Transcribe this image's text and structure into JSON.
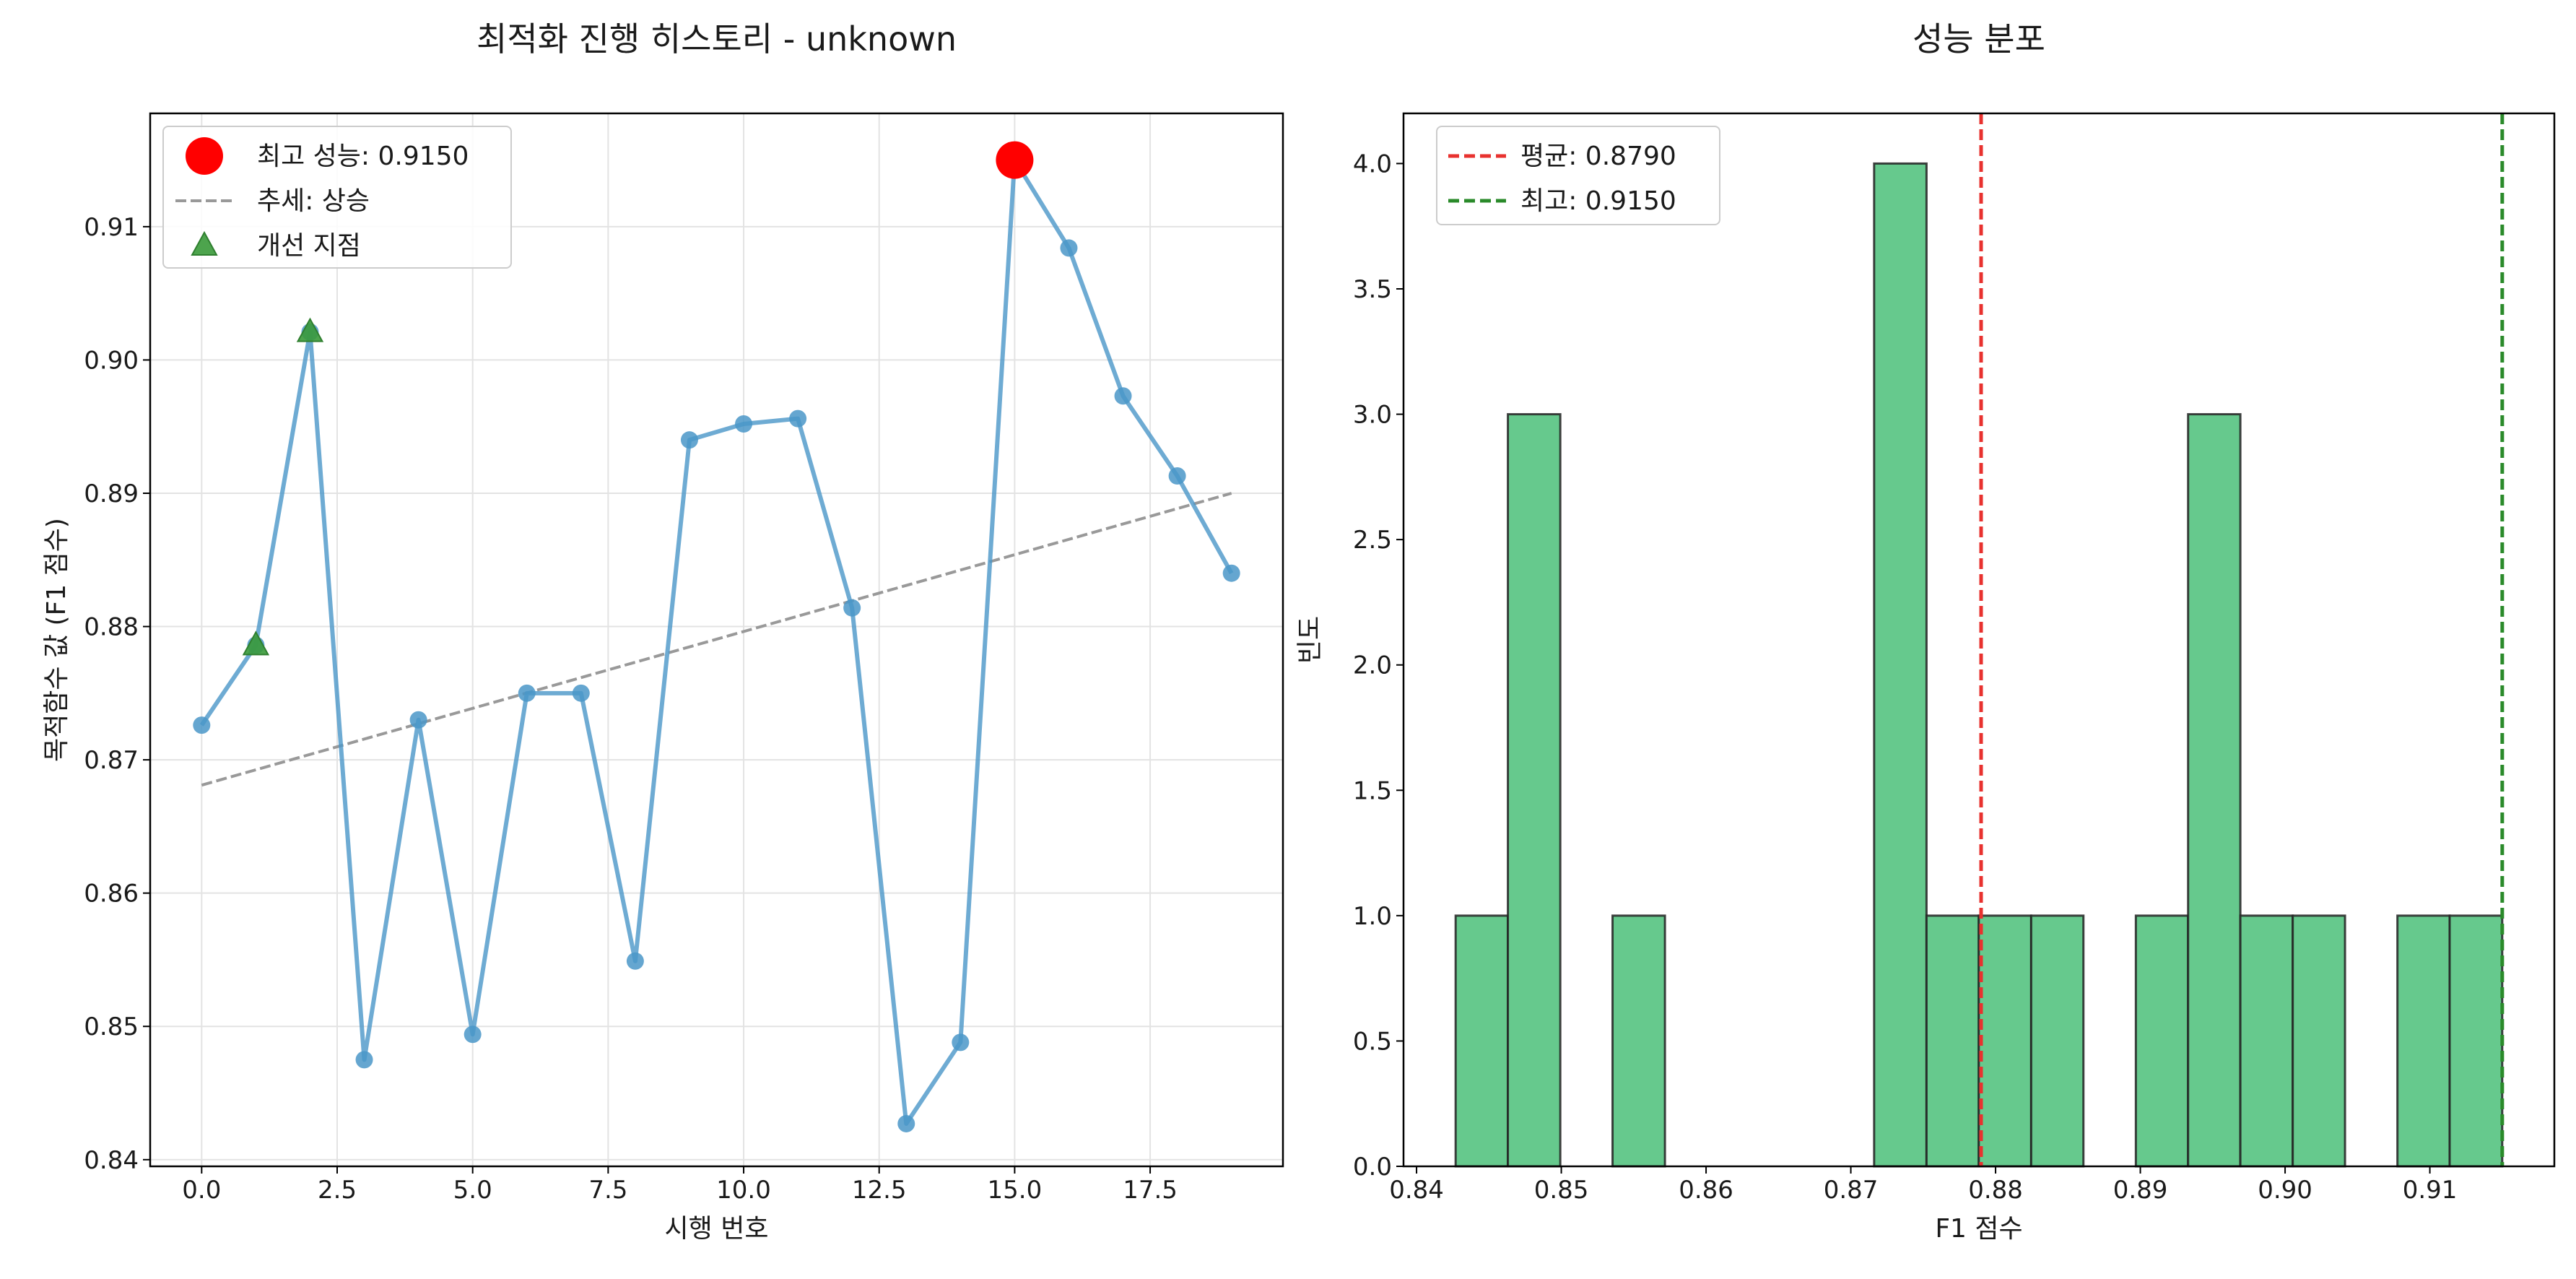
{
  "chart_data": [
    {
      "type": "line",
      "title": "최적화 진행 히스토리 - unknown",
      "xlabel": "시행 번호",
      "ylabel": "목적함수 값 (F1 점수)",
      "xlim": [
        -0.95,
        19.95
      ],
      "ylim": [
        0.8395,
        0.9185
      ],
      "xticks": [
        0.0,
        2.5,
        5.0,
        7.5,
        10.0,
        12.5,
        15.0,
        17.5
      ],
      "xtick_labels": [
        "0.0",
        "2.5",
        "5.0",
        "7.5",
        "10.0",
        "12.5",
        "15.0",
        "17.5"
      ],
      "yticks": [
        0.84,
        0.85,
        0.86,
        0.87,
        0.88,
        0.89,
        0.9,
        0.91
      ],
      "ytick_labels": [
        "0.84",
        "0.85",
        "0.86",
        "0.87",
        "0.88",
        "0.89",
        "0.90",
        "0.91"
      ],
      "grid": true,
      "legend_position": "top-left",
      "series": {
        "x": [
          0,
          1,
          2,
          3,
          4,
          5,
          6,
          7,
          8,
          9,
          10,
          11,
          12,
          13,
          14,
          15,
          16,
          17,
          18,
          19
        ],
        "y": [
          0.8726,
          0.8786,
          0.9021,
          0.8475,
          0.873,
          0.8494,
          0.875,
          0.875,
          0.8549,
          0.894,
          0.8952,
          0.8956,
          0.8814,
          0.8427,
          0.8488,
          0.915,
          0.9084,
          0.8973,
          0.8913,
          0.884
        ],
        "color": "#4a96c8"
      },
      "best_point": {
        "x": 15,
        "y": 0.915,
        "color": "#ff0000"
      },
      "trend_line": {
        "x": [
          0,
          19
        ],
        "y": [
          0.8681,
          0.89
        ],
        "color": "#999999"
      },
      "improvement_points": {
        "x": [
          1,
          2
        ],
        "y": [
          0.8786,
          0.9021
        ],
        "color": "#3a9a3a"
      },
      "legend": [
        {
          "key": "best",
          "label": "최고 성능: 0.9150"
        },
        {
          "key": "trend",
          "label": "추세: 상승"
        },
        {
          "key": "improve",
          "label": "개선 지점"
        }
      ]
    },
    {
      "type": "bar",
      "title": "성능 분포",
      "xlabel": "F1 점수",
      "ylabel": "빈도",
      "xlim": [
        0.8391,
        0.9186
      ],
      "ylim": [
        0,
        4.2
      ],
      "xticks": [
        0.84,
        0.85,
        0.86,
        0.87,
        0.88,
        0.89,
        0.9,
        0.91
      ],
      "xtick_labels": [
        "0.84",
        "0.85",
        "0.86",
        "0.87",
        "0.88",
        "0.89",
        "0.90",
        "0.91"
      ],
      "yticks": [
        0.0,
        0.5,
        1.0,
        1.5,
        2.0,
        2.5,
        3.0,
        3.5,
        4.0
      ],
      "ytick_labels": [
        "0.0",
        "0.5",
        "1.0",
        "1.5",
        "2.0",
        "2.5",
        "3.0",
        "3.5",
        "4.0"
      ],
      "bin_edges": [
        0.8427,
        0.84631,
        0.84993,
        0.85354,
        0.85716,
        0.86077,
        0.86439,
        0.868,
        0.87161,
        0.87523,
        0.87884,
        0.88246,
        0.88607,
        0.88969,
        0.8933,
        0.89691,
        0.90053,
        0.90414,
        0.90776,
        0.91137,
        0.915
      ],
      "values": [
        1,
        3,
        0,
        1,
        0,
        0,
        0,
        0,
        4,
        1,
        1,
        1,
        0,
        1,
        3,
        1,
        1,
        0,
        1,
        1
      ],
      "bar_color": "#66c98d",
      "mean": {
        "value": 0.879,
        "color": "#e8322f"
      },
      "best": {
        "value": 0.915,
        "color": "#2a8a2a"
      },
      "legend_position": "top-left",
      "legend": [
        {
          "key": "mean",
          "label": "평균: 0.8790"
        },
        {
          "key": "best",
          "label": "최고: 0.9150"
        }
      ]
    }
  ]
}
